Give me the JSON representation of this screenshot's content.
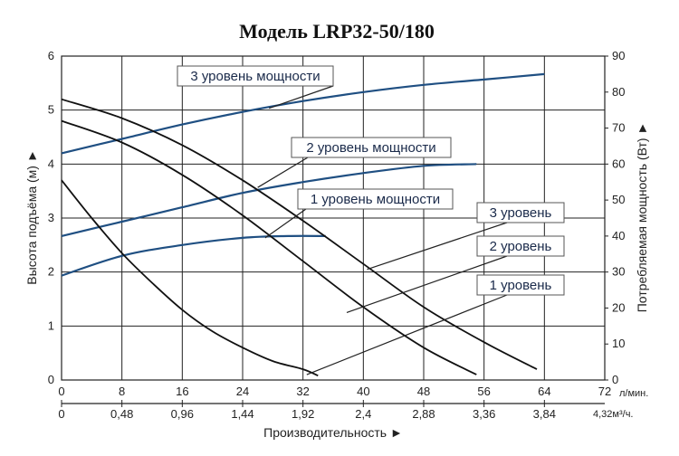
{
  "chart_data": {
    "type": "line",
    "title": "Модель LRP32-50/180",
    "xlabel": "Производительность ►",
    "ylabel_left": "Высота подъёма (м) ►",
    "ylabel_right": "Потребляемая мощность (Вт) ►",
    "x_unit_primary": "л/мин.",
    "x_unit_secondary": "4,32м³/ч.",
    "x_ticks_primary": [
      "0",
      "8",
      "16",
      "24",
      "32",
      "40",
      "48",
      "56",
      "64",
      "72"
    ],
    "x_ticks_secondary": [
      "0",
      "0,48",
      "0,96",
      "1,44",
      "1,92",
      "2,4",
      "2,88",
      "3,36",
      "3,84"
    ],
    "y_ticks_left": [
      "0",
      "1",
      "2",
      "3",
      "4",
      "5",
      "6"
    ],
    "y_ticks_right": [
      "0",
      "10",
      "20",
      "30",
      "40",
      "50",
      "60",
      "70",
      "80",
      "90"
    ],
    "xlim": [
      0,
      72
    ],
    "ylim_left": [
      0,
      6
    ],
    "ylim_right": [
      0,
      90
    ],
    "grid": true,
    "head_series": [
      {
        "name": "1 уровень",
        "color": "#111111",
        "x": [
          0,
          4,
          8,
          12,
          16,
          20,
          24,
          28,
          32,
          34
        ],
        "y": [
          3.7,
          3.0,
          2.35,
          1.8,
          1.3,
          0.9,
          0.6,
          0.35,
          0.2,
          0.08
        ]
      },
      {
        "name": "2 уровень",
        "color": "#111111",
        "x": [
          0,
          8,
          16,
          24,
          32,
          40,
          48,
          55
        ],
        "y": [
          4.8,
          4.4,
          3.8,
          3.05,
          2.2,
          1.35,
          0.6,
          0.1
        ]
      },
      {
        "name": "3 уровень",
        "color": "#111111",
        "x": [
          0,
          8,
          16,
          24,
          32,
          40,
          48,
          56,
          63
        ],
        "y": [
          5.2,
          4.85,
          4.35,
          3.7,
          2.95,
          2.15,
          1.35,
          0.7,
          0.2
        ]
      }
    ],
    "power_series": [
      {
        "name": "1 уровень мощности",
        "color": "#1f4f82",
        "x": [
          0,
          8,
          16,
          24,
          30,
          35
        ],
        "y": [
          29,
          34.5,
          37.5,
          39.5,
          40,
          40
        ]
      },
      {
        "name": "2 уровень мощности",
        "color": "#1f4f82",
        "x": [
          0,
          8,
          16,
          24,
          32,
          40,
          48,
          55
        ],
        "y": [
          40,
          44,
          48,
          52,
          55,
          57.5,
          59.5,
          60
        ]
      },
      {
        "name": "3 уровень мощности",
        "color": "#1f4f82",
        "x": [
          0,
          8,
          16,
          24,
          32,
          40,
          48,
          56,
          64
        ],
        "y": [
          63,
          67,
          71,
          74.5,
          77.5,
          80,
          82,
          83.5,
          85
        ]
      }
    ]
  }
}
